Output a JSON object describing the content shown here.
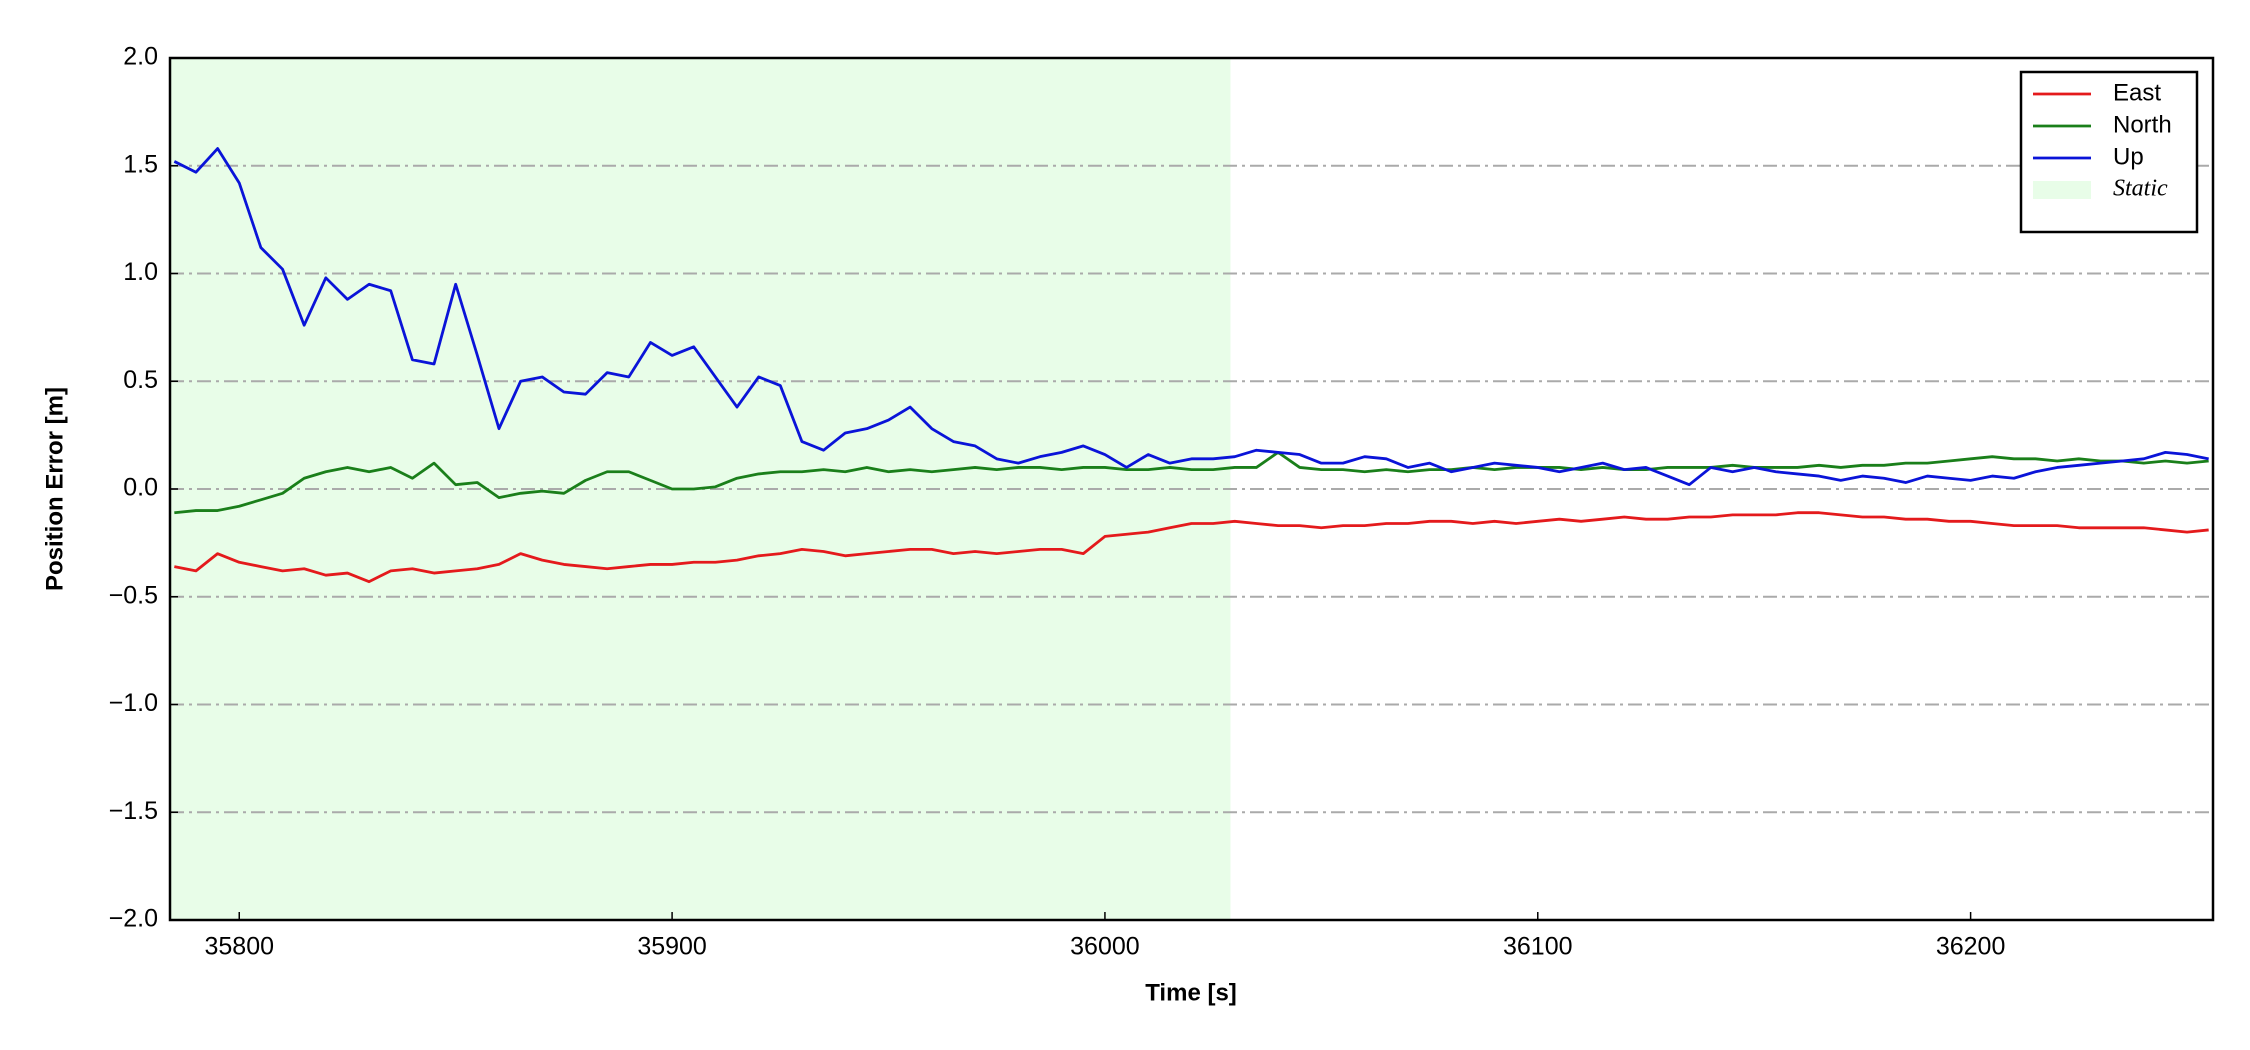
{
  "chart_data": {
    "type": "line",
    "xlabel": "Time [s]",
    "ylabel": "Position Error [m]",
    "xlim": [
      35784,
      36256
    ],
    "ylim": [
      -2,
      2
    ],
    "xticks": [
      35800,
      35900,
      36000,
      36100,
      36200
    ],
    "yticks": [
      {
        "value": -2,
        "label": "−2.0"
      },
      {
        "value": -1.5,
        "label": "−1.5"
      },
      {
        "value": -1,
        "label": "−1.0"
      },
      {
        "value": -0.5,
        "label": "−0.5"
      },
      {
        "value": 0,
        "label": "0.0"
      },
      0.5,
      {
        "value": 1,
        "label": "1.0"
      },
      1.5,
      {
        "value": 2,
        "label": "2.0"
      }
    ],
    "grid": "y",
    "legend": "upper right",
    "shade": {
      "name": "Static",
      "color": "#e8fde8",
      "x": [
        35784,
        36029
      ]
    },
    "x": [
      35785,
      35790,
      35795,
      35800,
      35805,
      35810,
      35815,
      35820,
      35825,
      35830,
      35835,
      35840,
      35845,
      35850,
      35855,
      35860,
      35865,
      35870,
      35875,
      35880,
      35885,
      35890,
      35895,
      35900,
      35905,
      35910,
      35915,
      35920,
      35925,
      35930,
      35935,
      35940,
      35945,
      35950,
      35955,
      35960,
      35965,
      35970,
      35975,
      35980,
      35985,
      35990,
      35995,
      36000,
      36005,
      36010,
      36015,
      36020,
      36025,
      36030,
      36035,
      36040,
      36045,
      36050,
      36055,
      36060,
      36065,
      36070,
      36075,
      36080,
      36085,
      36090,
      36095,
      36100,
      36105,
      36110,
      36115,
      36120,
      36125,
      36130,
      36135,
      36140,
      36145,
      36150,
      36155,
      36160,
      36165,
      36170,
      36175,
      36180,
      36185,
      36190,
      36195,
      36200,
      36205,
      36210,
      36215,
      36220,
      36225,
      36230,
      36235,
      36240,
      36245,
      36250,
      36255
    ],
    "series": [
      {
        "name": "East",
        "color": "#e41a1c",
        "values": [
          -0.36,
          -0.38,
          -0.3,
          -0.34,
          -0.36,
          -0.38,
          -0.37,
          -0.4,
          -0.39,
          -0.43,
          -0.38,
          -0.37,
          -0.39,
          -0.38,
          -0.37,
          -0.35,
          -0.3,
          -0.33,
          -0.35,
          -0.36,
          -0.37,
          -0.36,
          -0.35,
          -0.35,
          -0.34,
          -0.34,
          -0.33,
          -0.31,
          -0.3,
          -0.28,
          -0.29,
          -0.31,
          -0.3,
          -0.29,
          -0.28,
          -0.28,
          -0.3,
          -0.29,
          -0.3,
          -0.29,
          -0.28,
          -0.28,
          -0.3,
          -0.22,
          -0.21,
          -0.2,
          -0.18,
          -0.16,
          -0.16,
          -0.15,
          -0.16,
          -0.17,
          -0.17,
          -0.18,
          -0.17,
          -0.17,
          -0.16,
          -0.16,
          -0.15,
          -0.15,
          -0.16,
          -0.15,
          -0.16,
          -0.15,
          -0.14,
          -0.15,
          -0.14,
          -0.13,
          -0.14,
          -0.14,
          -0.13,
          -0.13,
          -0.12,
          -0.12,
          -0.12,
          -0.11,
          -0.11,
          -0.12,
          -0.13,
          -0.13,
          -0.14,
          -0.14,
          -0.15,
          -0.15,
          -0.16,
          -0.17,
          -0.17,
          -0.17,
          -0.18,
          -0.18,
          -0.18,
          -0.18,
          -0.19,
          -0.2,
          -0.19
        ]
      },
      {
        "name": "North",
        "color": "#1a7f1a",
        "values": [
          -0.11,
          -0.1,
          -0.1,
          -0.08,
          -0.05,
          -0.02,
          0.05,
          0.08,
          0.1,
          0.08,
          0.1,
          0.05,
          0.12,
          0.02,
          0.03,
          -0.04,
          -0.02,
          -0.01,
          -0.02,
          0.04,
          0.08,
          0.08,
          0.04,
          0.0,
          0.0,
          0.01,
          0.05,
          0.07,
          0.08,
          0.08,
          0.09,
          0.08,
          0.1,
          0.08,
          0.09,
          0.08,
          0.09,
          0.1,
          0.09,
          0.1,
          0.1,
          0.09,
          0.1,
          0.1,
          0.09,
          0.09,
          0.1,
          0.09,
          0.09,
          0.1,
          0.1,
          0.17,
          0.1,
          0.09,
          0.09,
          0.08,
          0.09,
          0.08,
          0.09,
          0.09,
          0.1,
          0.09,
          0.1,
          0.1,
          0.1,
          0.09,
          0.1,
          0.09,
          0.09,
          0.1,
          0.1,
          0.1,
          0.11,
          0.1,
          0.1,
          0.1,
          0.11,
          0.1,
          0.11,
          0.11,
          0.12,
          0.12,
          0.13,
          0.14,
          0.15,
          0.14,
          0.14,
          0.13,
          0.14,
          0.13,
          0.13,
          0.12,
          0.13,
          0.12,
          0.13
        ]
      },
      {
        "name": "Up",
        "color": "#0a14d8",
        "values": [
          1.52,
          1.47,
          1.58,
          1.42,
          1.12,
          1.02,
          0.76,
          0.98,
          0.88,
          0.95,
          0.92,
          0.6,
          0.58,
          0.95,
          0.62,
          0.28,
          0.5,
          0.52,
          0.45,
          0.44,
          0.54,
          0.52,
          0.68,
          0.62,
          0.66,
          0.52,
          0.38,
          0.52,
          0.48,
          0.22,
          0.18,
          0.26,
          0.28,
          0.32,
          0.38,
          0.28,
          0.22,
          0.2,
          0.14,
          0.12,
          0.15,
          0.17,
          0.2,
          0.16,
          0.1,
          0.16,
          0.12,
          0.14,
          0.14,
          0.15,
          0.18,
          0.17,
          0.16,
          0.12,
          0.12,
          0.15,
          0.14,
          0.1,
          0.12,
          0.08,
          0.1,
          0.12,
          0.11,
          0.1,
          0.08,
          0.1,
          0.12,
          0.09,
          0.1,
          0.06,
          0.02,
          0.1,
          0.08,
          0.1,
          0.08,
          0.07,
          0.06,
          0.04,
          0.06,
          0.05,
          0.03,
          0.06,
          0.05,
          0.04,
          0.06,
          0.05,
          0.08,
          0.1,
          0.11,
          0.12,
          0.13,
          0.14,
          0.17,
          0.16,
          0.14
        ]
      }
    ]
  }
}
